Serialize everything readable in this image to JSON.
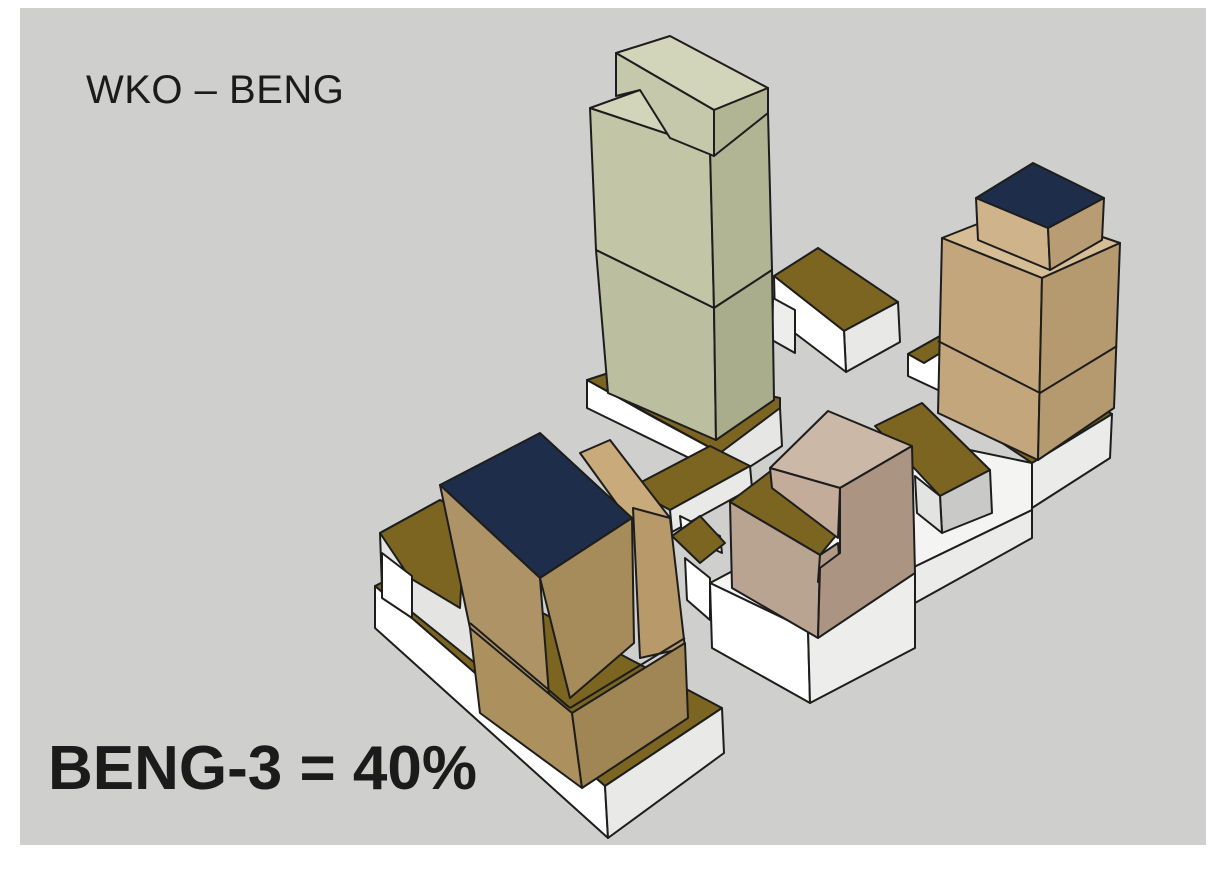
{
  "title": "WKO – BENG",
  "result_label": "BENG-3 = 40%",
  "colors": {
    "background": "#cfcfcd",
    "tall_tower": "#c1c3a6",
    "brown_tower": "#ad9365",
    "solar_roof": "#7b6521",
    "navy_roof": "#1e2e4a",
    "podium": "#f7f7f5",
    "pink_block": "#b9a391",
    "tan_tower": "#c9ad86"
  }
}
